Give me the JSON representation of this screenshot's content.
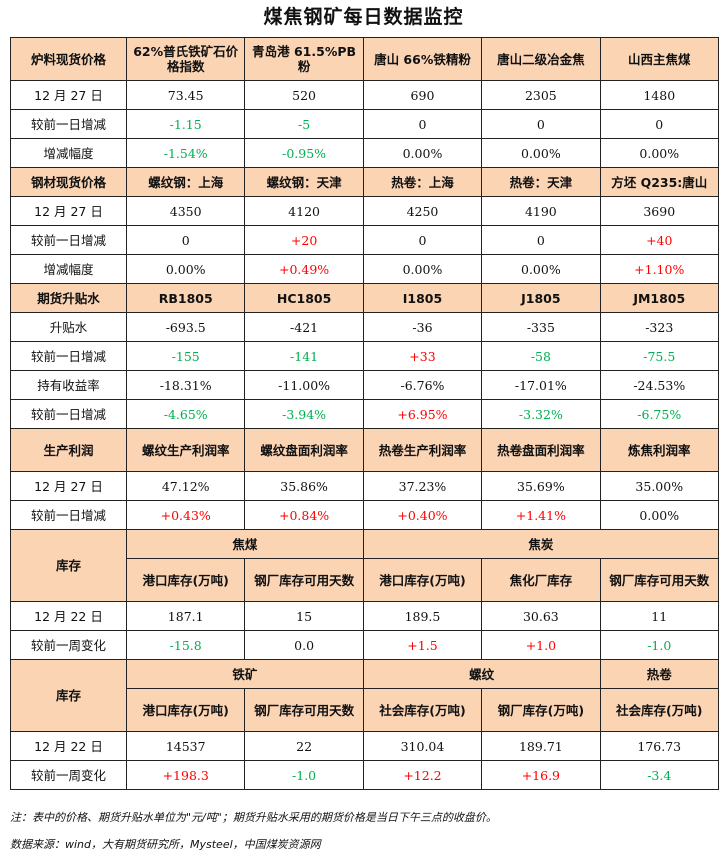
{
  "title": "煤焦钢矿每日数据监控",
  "section1": {
    "header": [
      "炉料现货价格",
      "62%普氏铁矿石价格指数",
      "青岛港 61.5%PB粉",
      "唐山 66%铁精粉",
      "唐山二级冶金焦",
      "山西主焦煤"
    ],
    "rows": [
      {
        "label": "12 月 27 日",
        "values": [
          "73.45",
          "520",
          "690",
          "2305",
          "1480"
        ],
        "tones": [
          "neu",
          "neu",
          "neu",
          "neu",
          "neu"
        ]
      },
      {
        "label": "较前一日增减",
        "values": [
          "-1.15",
          "-5",
          "0",
          "0",
          "0"
        ],
        "tones": [
          "neg",
          "neg",
          "neu",
          "neu",
          "neu"
        ]
      },
      {
        "label": "增减幅度",
        "values": [
          "-1.54%",
          "-0.95%",
          "0.00%",
          "0.00%",
          "0.00%"
        ],
        "tones": [
          "neg",
          "neg",
          "neu",
          "neu",
          "neu"
        ]
      }
    ]
  },
  "section2": {
    "header": [
      "钢材现货价格",
      "螺纹钢：上海",
      "螺纹钢：天津",
      "热卷：上海",
      "热卷：天津",
      "方坯 Q235:唐山"
    ],
    "rows": [
      {
        "label": "12 月 27 日",
        "values": [
          "4350",
          "4120",
          "4250",
          "4190",
          "3690"
        ],
        "tones": [
          "neu",
          "neu",
          "neu",
          "neu",
          "neu"
        ]
      },
      {
        "label": "较前一日增减",
        "values": [
          "0",
          "+20",
          "0",
          "0",
          "+40"
        ],
        "tones": [
          "neu",
          "pos",
          "neu",
          "neu",
          "pos"
        ]
      },
      {
        "label": "增减幅度",
        "values": [
          "0.00%",
          "+0.49%",
          "0.00%",
          "0.00%",
          "+1.10%"
        ],
        "tones": [
          "neu",
          "pos",
          "neu",
          "neu",
          "pos"
        ]
      }
    ]
  },
  "section3": {
    "header": [
      "期货升贴水",
      "RB1805",
      "HC1805",
      "I1805",
      "J1805",
      "JM1805"
    ],
    "rows": [
      {
        "label": "升贴水",
        "values": [
          "-693.5",
          "-421",
          "-36",
          "-335",
          "-323"
        ],
        "tones": [
          "neu",
          "neu",
          "neu",
          "neu",
          "neu"
        ]
      },
      {
        "label": "较前一日增减",
        "values": [
          "-155",
          "-141",
          "+33",
          "-58",
          "-75.5"
        ],
        "tones": [
          "neg",
          "neg",
          "pos",
          "neg",
          "neg"
        ]
      },
      {
        "label": "持有收益率",
        "values": [
          "-18.31%",
          "-11.00%",
          "-6.76%",
          "-17.01%",
          "-24.53%"
        ],
        "tones": [
          "neu",
          "neu",
          "neu",
          "neu",
          "neu"
        ]
      },
      {
        "label": "较前一日增减",
        "values": [
          "-4.65%",
          "-3.94%",
          "+6.95%",
          "-3.32%",
          "-6.75%"
        ],
        "tones": [
          "neg",
          "neg",
          "pos",
          "neg",
          "neg"
        ]
      }
    ]
  },
  "section4": {
    "header": [
      "生产利润",
      "螺纹生产利润率",
      "螺纹盘面利润率",
      "热卷生产利润率",
      "热卷盘面利润率",
      "炼焦利润率"
    ],
    "rows": [
      {
        "label": "12 月 27 日",
        "values": [
          "47.12%",
          "35.86%",
          "37.23%",
          "35.69%",
          "35.00%"
        ],
        "tones": [
          "neu",
          "neu",
          "neu",
          "neu",
          "neu"
        ]
      },
      {
        "label": "较前一日增减",
        "values": [
          "+0.43%",
          "+0.84%",
          "+0.40%",
          "+1.41%",
          "0.00%"
        ],
        "tones": [
          "pos",
          "pos",
          "pos",
          "pos",
          "neu"
        ]
      }
    ]
  },
  "section5": {
    "label": "库存",
    "groups": [
      "焦煤",
      "焦炭"
    ],
    "subheader": [
      "港口库存(万吨)",
      "钢厂库存可用天数",
      "港口库存(万吨)",
      "焦化厂库存",
      "钢厂库存可用天数"
    ],
    "rows": [
      {
        "label": "12 月 22 日",
        "values": [
          "187.1",
          "15",
          "189.5",
          "30.63",
          "11"
        ],
        "tones": [
          "neu",
          "neu",
          "neu",
          "neu",
          "neu"
        ]
      },
      {
        "label": "较前一周变化",
        "values": [
          "-15.8",
          "0.0",
          "+1.5",
          "+1.0",
          "-1.0"
        ],
        "tones": [
          "neg",
          "neu",
          "pos",
          "pos",
          "neg"
        ]
      }
    ]
  },
  "section6": {
    "label": "库存",
    "groups": [
      "铁矿",
      "螺纹",
      "热卷"
    ],
    "subheader": [
      "港口库存(万吨)",
      "钢厂库存可用天数",
      "社会库存(万吨)",
      "钢厂库存(万吨)",
      "社会库存(万吨)"
    ],
    "rows": [
      {
        "label": "12 月 22 日",
        "values": [
          "14537",
          "22",
          "310.04",
          "189.71",
          "176.73"
        ],
        "tones": [
          "neu",
          "neu",
          "neu",
          "neu",
          "neu"
        ]
      },
      {
        "label": "较前一周变化",
        "values": [
          "+198.3",
          "-1.0",
          "+12.2",
          "+16.9",
          "-3.4"
        ],
        "tones": [
          "pos",
          "neg",
          "pos",
          "pos",
          "neg"
        ]
      }
    ]
  },
  "colors": {
    "header_bg": "#fbd4b4",
    "increase": "#ff0000",
    "decrease": "#00b050",
    "border": "#222222"
  },
  "note": "注：表中的价格、期货升贴水单位为\"元/吨\"；期货升贴水采用的期货价格是当日下午三点的收盘价。",
  "source": "数据来源：wind，大有期货研究所，Mysteel，中国煤炭资源网"
}
